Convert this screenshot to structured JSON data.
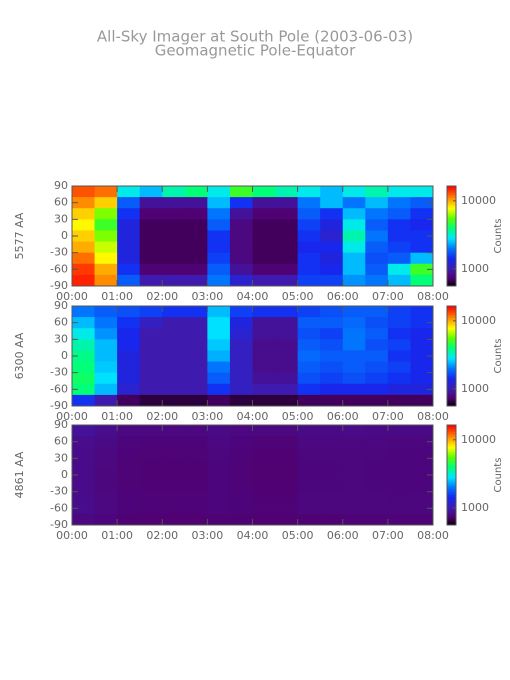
{
  "title": "All-Sky Imager at South Pole (2003-06-03)",
  "subtitle": "Geomagnetic Pole-Equator",
  "chart_data": [
    {
      "type": "heatmap",
      "ylabel": "5577 AA",
      "colorbar_label": "Counts",
      "colormap": "rainbow",
      "zlog": true,
      "xlim": [
        0,
        8
      ],
      "ylim": [
        -90,
        90
      ],
      "zlim": [
        560,
        16500
      ],
      "xticks": [
        {
          "value": 0,
          "label": "00:00"
        },
        {
          "value": 1,
          "label": "01:00"
        },
        {
          "value": 2,
          "label": "02:00"
        },
        {
          "value": 3,
          "label": "03:00"
        },
        {
          "value": 4,
          "label": "04:00"
        },
        {
          "value": 5,
          "label": "05:00"
        },
        {
          "value": 6,
          "label": "06:00"
        },
        {
          "value": 7,
          "label": "07:00"
        },
        {
          "value": 8,
          "label": "08:00"
        }
      ],
      "yticks": [
        -90,
        -60,
        -30,
        0,
        30,
        60,
        90
      ],
      "zticks": [
        1000,
        10000
      ],
      "x": [
        0.25,
        0.75,
        1.25,
        1.75,
        2.25,
        2.75,
        3.25,
        3.75,
        4.25,
        4.75,
        5.25,
        5.75,
        6.25,
        6.75,
        7.25,
        7.75
      ],
      "y": [
        80,
        60,
        40,
        20,
        0,
        -20,
        -40,
        -60,
        -80
      ],
      "z": [
        [
          13000,
          12000,
          3000,
          2500,
          3500,
          4000,
          3000,
          5000,
          4000,
          3500,
          3000,
          2500,
          3000,
          3500,
          3000,
          3000
        ],
        [
          11000,
          9000,
          1800,
          900,
          900,
          900,
          2500,
          1500,
          900,
          900,
          2000,
          2500,
          2000,
          2500,
          2000,
          1800
        ],
        [
          9000,
          6000,
          1500,
          750,
          750,
          750,
          2000,
          900,
          750,
          750,
          1800,
          1500,
          2500,
          2000,
          1800,
          1500
        ],
        [
          8000,
          5000,
          1300,
          700,
          700,
          700,
          1800,
          800,
          700,
          700,
          1600,
          1300,
          3000,
          1800,
          1500,
          1400
        ],
        [
          9000,
          6000,
          1300,
          700,
          700,
          700,
          1500,
          800,
          700,
          700,
          1500,
          1200,
          3500,
          2000,
          1500,
          1500
        ],
        [
          10000,
          7000,
          1300,
          700,
          700,
          700,
          1500,
          800,
          700,
          700,
          1400,
          1400,
          3000,
          1800,
          1600,
          1500
        ],
        [
          12000,
          8000,
          1300,
          700,
          700,
          700,
          1600,
          800,
          700,
          700,
          1500,
          1300,
          2500,
          1700,
          1800,
          2500
        ],
        [
          14000,
          10000,
          1500,
          750,
          750,
          750,
          1800,
          900,
          750,
          750,
          1500,
          1400,
          2500,
          1800,
          3000,
          5000
        ],
        [
          15000,
          11000,
          1800,
          1000,
          1000,
          1000,
          2000,
          1200,
          1000,
          1000,
          1600,
          1600,
          2200,
          2000,
          2500,
          4000
        ]
      ]
    },
    {
      "type": "heatmap",
      "ylabel": "6300 AA",
      "colorbar_label": "Counts",
      "colormap": "rainbow",
      "zlog": true,
      "xlim": [
        0,
        8
      ],
      "ylim": [
        -90,
        90
      ],
      "zlim": [
        560,
        16500
      ],
      "xticks": [
        {
          "value": 0,
          "label": "00:00"
        },
        {
          "value": 1,
          "label": "01:00"
        },
        {
          "value": 2,
          "label": "02:00"
        },
        {
          "value": 3,
          "label": "03:00"
        },
        {
          "value": 4,
          "label": "04:00"
        },
        {
          "value": 5,
          "label": "05:00"
        },
        {
          "value": 6,
          "label": "06:00"
        },
        {
          "value": 7,
          "label": "07:00"
        },
        {
          "value": 8,
          "label": "08:00"
        }
      ],
      "yticks": [
        -90,
        -60,
        -30,
        0,
        30,
        60,
        90
      ],
      "zticks": [
        1000,
        10000
      ],
      "x": [
        0.25,
        0.75,
        1.25,
        1.75,
        2.25,
        2.75,
        3.25,
        3.75,
        4.25,
        4.75,
        5.25,
        5.75,
        6.25,
        6.75,
        7.25,
        7.75
      ],
      "y": [
        80,
        60,
        40,
        20,
        0,
        -20,
        -40,
        -60,
        -80
      ],
      "z": [
        [
          2000,
          1800,
          1700,
          1600,
          1500,
          1500,
          2500,
          1600,
          1500,
          1500,
          1600,
          1700,
          1800,
          1800,
          1600,
          1500
        ],
        [
          2500,
          2000,
          1500,
          1100,
          1000,
          1000,
          2800,
          1300,
          900,
          900,
          1800,
          1800,
          1900,
          1700,
          1600,
          1500
        ],
        [
          3000,
          2200,
          1400,
          1000,
          1000,
          1000,
          2800,
          1200,
          900,
          900,
          1700,
          1600,
          2000,
          1800,
          1500,
          1400
        ],
        [
          3500,
          2500,
          1400,
          1000,
          1000,
          1000,
          2600,
          1100,
          850,
          850,
          1800,
          1700,
          2000,
          1700,
          1600,
          1400
        ],
        [
          3800,
          2500,
          1300,
          1000,
          1000,
          1000,
          2400,
          1100,
          850,
          850,
          1900,
          1800,
          1800,
          1800,
          1500,
          1400
        ],
        [
          4000,
          2600,
          1300,
          1000,
          1000,
          1000,
          2000,
          1100,
          850,
          850,
          1800,
          1700,
          1800,
          1700,
          1600,
          1400
        ],
        [
          4200,
          2800,
          1300,
          1000,
          1000,
          1000,
          1800,
          1100,
          900,
          900,
          1700,
          1600,
          1700,
          1600,
          1500,
          1400
        ],
        [
          4000,
          2500,
          1200,
          1000,
          1000,
          1000,
          1500,
          1100,
          1000,
          1000,
          1500,
          1400,
          1400,
          1400,
          1300,
          1300
        ],
        [
          1500,
          1000,
          700,
          650,
          650,
          650,
          700,
          650,
          650,
          650,
          700,
          700,
          700,
          700,
          700,
          700
        ]
      ]
    },
    {
      "type": "heatmap",
      "ylabel": "4861 AA",
      "colorbar_label": "Counts",
      "colormap": "rainbow",
      "zlog": true,
      "xlim": [
        0,
        8
      ],
      "ylim": [
        -90,
        90
      ],
      "zlim": [
        560,
        16500
      ],
      "xticks": [
        {
          "value": 0,
          "label": "00:00"
        },
        {
          "value": 1,
          "label": "01:00"
        },
        {
          "value": 2,
          "label": "02:00"
        },
        {
          "value": 3,
          "label": "03:00"
        },
        {
          "value": 4,
          "label": "04:00"
        },
        {
          "value": 5,
          "label": "05:00"
        },
        {
          "value": 6,
          "label": "06:00"
        },
        {
          "value": 7,
          "label": "07:00"
        },
        {
          "value": 8,
          "label": "08:00"
        }
      ],
      "yticks": [
        -90,
        -60,
        -30,
        0,
        30,
        60,
        90
      ],
      "zticks": [
        1000,
        10000
      ],
      "x": [
        0.25,
        0.75,
        1.25,
        1.75,
        2.25,
        2.75,
        3.25,
        3.75,
        4.25,
        4.75,
        5.25,
        5.75,
        6.25,
        6.75,
        7.25,
        7.75
      ],
      "y": [
        80,
        60,
        40,
        20,
        0,
        -20,
        -40,
        -60,
        -80
      ],
      "z": [
        [
          900,
          850,
          800,
          800,
          800,
          800,
          820,
          800,
          800,
          800,
          820,
          820,
          830,
          820,
          820,
          820
        ],
        [
          850,
          820,
          780,
          770,
          770,
          770,
          800,
          780,
          760,
          760,
          800,
          800,
          800,
          800,
          790,
          790
        ],
        [
          840,
          800,
          770,
          760,
          760,
          760,
          790,
          770,
          750,
          750,
          790,
          790,
          790,
          790,
          780,
          780
        ],
        [
          830,
          800,
          760,
          750,
          750,
          750,
          780,
          760,
          740,
          740,
          780,
          780,
          790,
          780,
          780,
          780
        ],
        [
          830,
          790,
          760,
          750,
          750,
          750,
          780,
          760,
          740,
          740,
          780,
          780,
          790,
          780,
          780,
          780
        ],
        [
          830,
          790,
          760,
          750,
          750,
          750,
          780,
          760,
          740,
          740,
          780,
          780,
          790,
          780,
          780,
          780
        ],
        [
          840,
          800,
          770,
          760,
          760,
          760,
          780,
          770,
          750,
          750,
          790,
          790,
          790,
          790,
          780,
          790
        ],
        [
          850,
          800,
          770,
          760,
          760,
          760,
          780,
          770,
          760,
          760,
          790,
          790,
          790,
          790,
          790,
          790
        ],
        [
          800,
          780,
          750,
          740,
          740,
          740,
          750,
          750,
          740,
          740,
          750,
          750,
          760,
          760,
          760,
          760
        ]
      ]
    }
  ]
}
